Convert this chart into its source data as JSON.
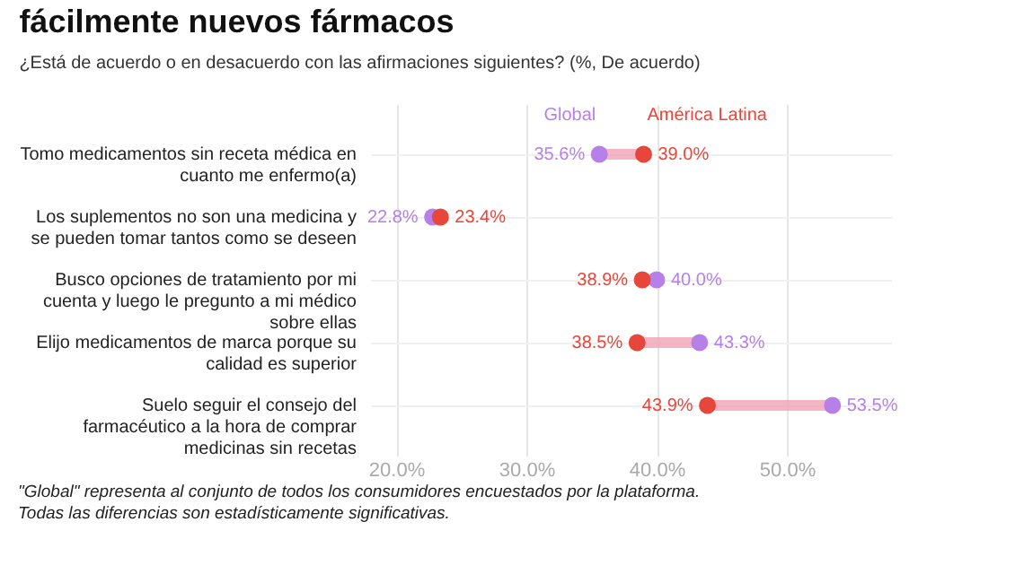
{
  "chart_data": {
    "type": "scatter",
    "orientation": "horizontal",
    "title": "fácilmente nuevos fármacos",
    "subtitle": "¿Está de acuerdo o en desacuerdo con las afirmaciones siguientes? (%, De acuerdo)",
    "categories": [
      "Tomo medicamentos sin receta médica en cuanto me enfermo(a)",
      "Los suplementos no son una medicina y se pueden tomar tantos como se deseen",
      "Busco opciones de tratamiento por mi cuenta y luego le pregunto a mi médico sobre ellas",
      "Elijo medicamentos de marca porque su calidad es superior",
      "Suelo seguir el consejo del farmacéutico a la hora de comprar medicinas sin recetas"
    ],
    "series": [
      {
        "name": "Global",
        "color": "#b77fe8",
        "values": [
          35.6,
          22.8,
          40.0,
          43.3,
          53.5
        ],
        "value_labels": [
          "35.6%",
          "22.8%",
          "40.0%",
          "43.3%",
          "53.5%"
        ]
      },
      {
        "name": "América Latina",
        "color": "#e8463a",
        "values": [
          39.0,
          23.4,
          38.9,
          38.5,
          43.9
        ],
        "value_labels": [
          "39.0%",
          "23.4%",
          "38.9%",
          "38.5%",
          "43.9%"
        ]
      }
    ],
    "xlim": [
      18,
      58
    ],
    "xticks": [
      {
        "value": 20,
        "label": "20.0%"
      },
      {
        "value": 30,
        "label": "30.0%"
      },
      {
        "value": 40,
        "label": "40.0%"
      },
      {
        "value": 50,
        "label": "50.0%"
      }
    ],
    "grid": true,
    "marker": "circle",
    "annotations": [
      "\"Global\" representa al conjunto de todos los consumidores encuestados por la plataforma.",
      "Todas las diferencias son estadísticamente significativas."
    ]
  }
}
